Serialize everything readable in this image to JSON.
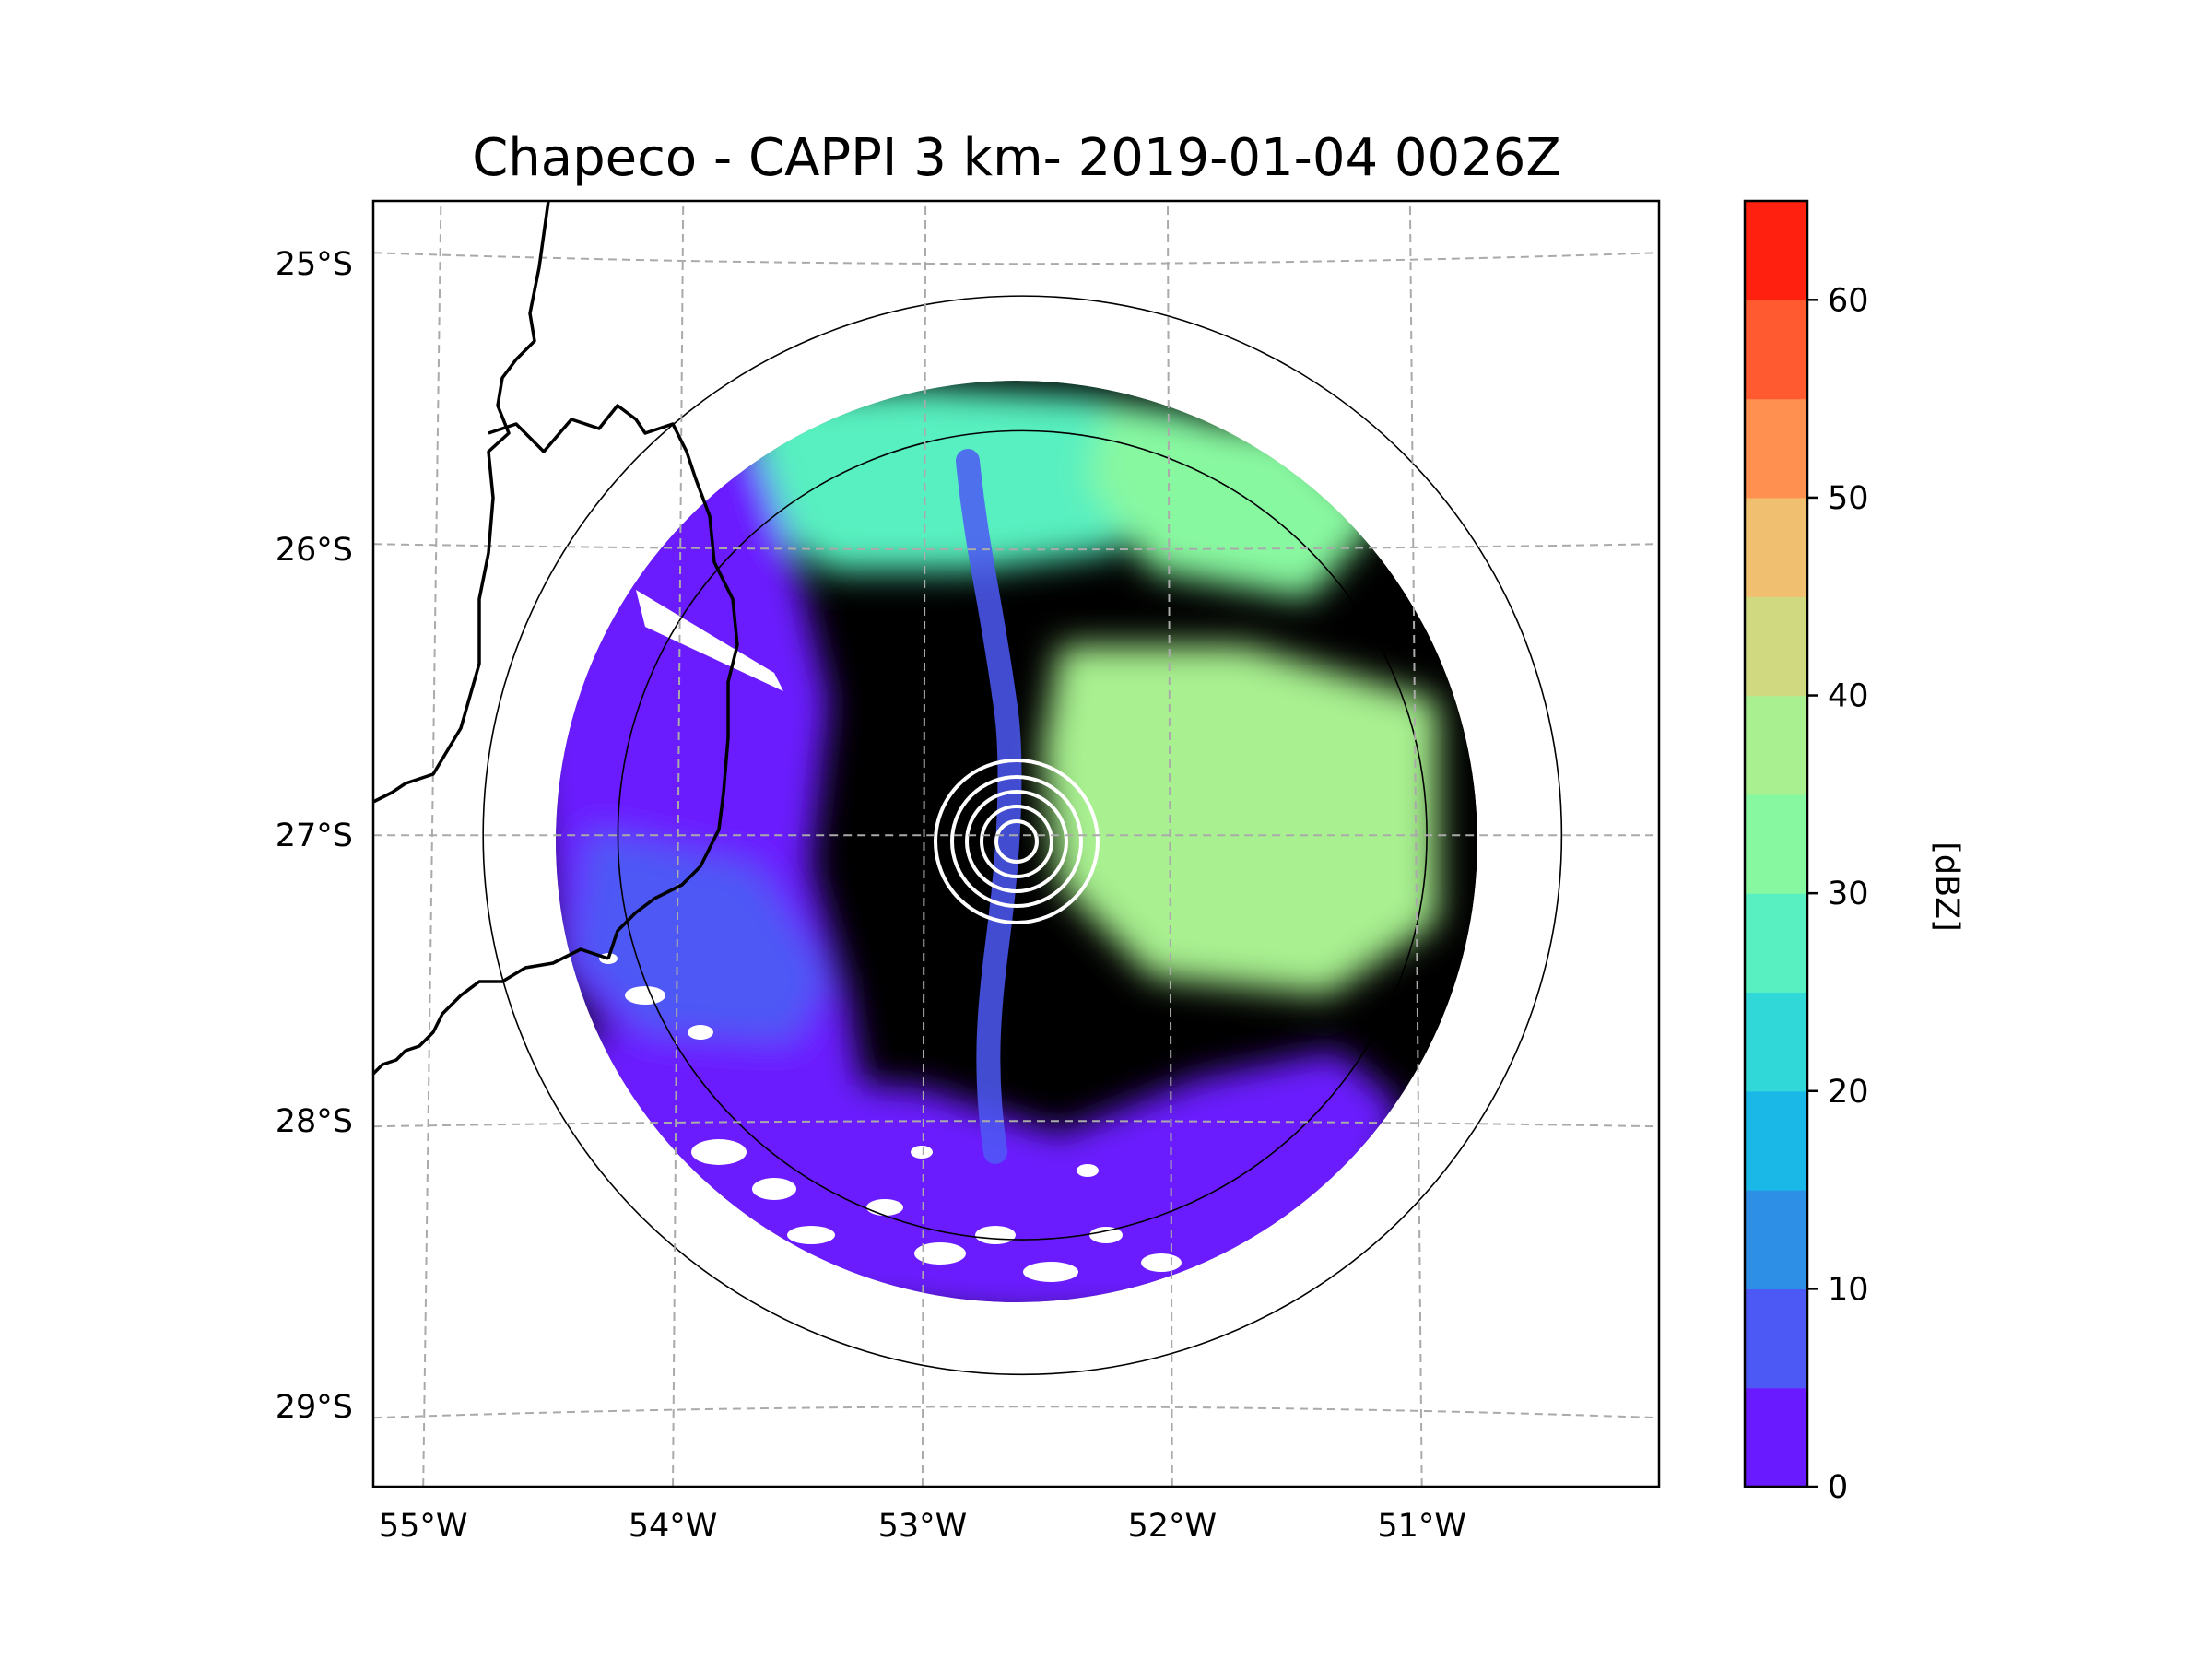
{
  "chart_data": {
    "type": "heatmap",
    "title": "Chapeco - CAPPI 3 km- 2019-01-04 0026Z",
    "map": {
      "lon_range": [
        -55.2,
        -50.05
      ],
      "lat_range": [
        -29.28,
        -24.78
      ],
      "radar_center": {
        "lon": -52.6,
        "lat": -27.0
      },
      "range_rings": [
        1.62,
        2.16
      ],
      "lon_ticks": [
        {
          "value": -55,
          "label": "55°W"
        },
        {
          "value": -54,
          "label": "54°W"
        },
        {
          "value": -53,
          "label": "53°W"
        },
        {
          "value": -52,
          "label": "52°W"
        },
        {
          "value": -51,
          "label": "51°W"
        }
      ],
      "lat_ticks": [
        {
          "value": -25,
          "label": "25°S"
        },
        {
          "value": -26,
          "label": "26°S"
        },
        {
          "value": -27,
          "label": "27°S"
        },
        {
          "value": -28,
          "label": "28°S"
        },
        {
          "value": -29,
          "label": "29°S"
        }
      ],
      "gridlines": true,
      "borders": true
    },
    "reflectivity_regions": [
      {
        "name": "background",
        "dbz": 32.5
      },
      {
        "name": "north",
        "dbz": 27.5
      },
      {
        "name": "northeast",
        "dbz": 32.5
      },
      {
        "name": "east",
        "dbz": 37.5
      },
      {
        "name": "west",
        "dbz": 2.5
      },
      {
        "name": "south",
        "dbz": 2.5
      },
      {
        "name": "southwest",
        "dbz": 7.5
      }
    ],
    "colorbar": {
      "label": "[dBZ]",
      "min": 0,
      "max": 65,
      "step": 5,
      "ticks": [
        {
          "value": 0,
          "label": "0"
        },
        {
          "value": 10,
          "label": "10"
        },
        {
          "value": 20,
          "label": "20"
        },
        {
          "value": 30,
          "label": "30"
        },
        {
          "value": 40,
          "label": "40"
        },
        {
          "value": 50,
          "label": "50"
        },
        {
          "value": 60,
          "label": "60"
        }
      ],
      "colors": [
        "#6a1aff",
        "#4d59f5",
        "#2d8fe6",
        "#1ab8e6",
        "#30d8d8",
        "#58f0c0",
        "#88f8a0",
        "#a8f090",
        "#d0d880",
        "#f0c070",
        "#ff9050",
        "#ff5a30",
        "#ff2010"
      ]
    }
  }
}
